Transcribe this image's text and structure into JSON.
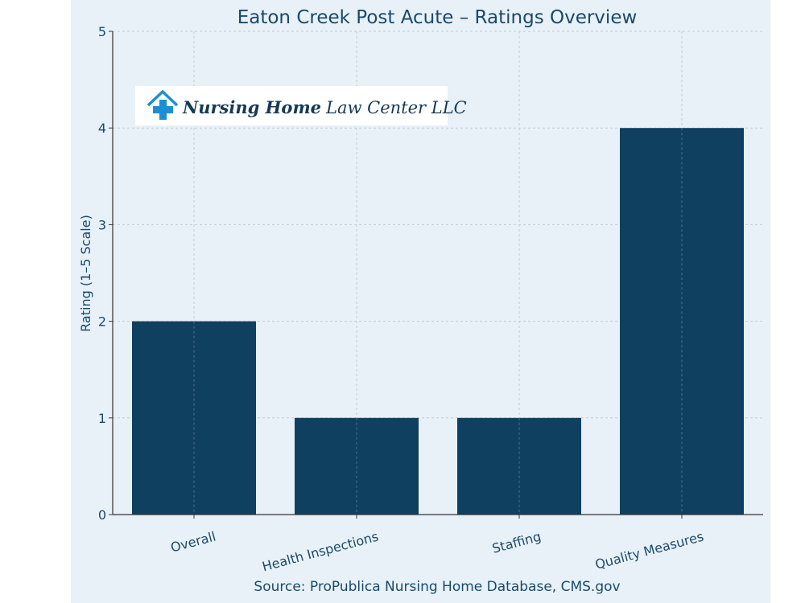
{
  "chart_data": {
    "type": "bar",
    "title": "Eaton Creek Post Acute – Ratings Overview",
    "xlabel": "",
    "ylabel": "Rating (1–5 Scale)",
    "categories": [
      "Overall",
      "Health Inspections",
      "Staffing",
      "Quality Measures"
    ],
    "values": [
      2,
      1,
      1,
      4
    ],
    "ylim": [
      0,
      5
    ],
    "yticks": [
      "0",
      "1",
      "2",
      "3",
      "4",
      "5"
    ],
    "grid": true,
    "bar_color": "#10405f",
    "caption": "Source: ProPublica Nursing Home Database, CMS.gov"
  },
  "logo": {
    "bold": "Nursing Home",
    "regular": "Law Center LLC",
    "icon": "house-cross-icon",
    "color": "#1b8fd6"
  }
}
